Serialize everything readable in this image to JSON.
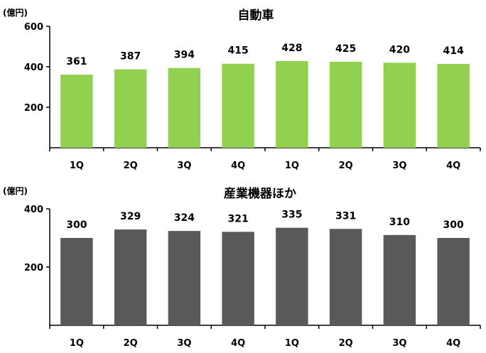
{
  "chart_data": [
    {
      "type": "bar",
      "title": "自動車",
      "unit_label": "(億円)",
      "categories": [
        "1Q",
        "2Q",
        "3Q",
        "4Q",
        "1Q",
        "2Q",
        "3Q",
        "4Q"
      ],
      "values": [
        361,
        387,
        394,
        415,
        428,
        425,
        420,
        414
      ],
      "value_labels": [
        "361",
        "387",
        "394",
        "415",
        "428",
        "425",
        "420",
        "414"
      ],
      "yticks": [
        "200",
        "400",
        "600"
      ],
      "ylim": [
        0,
        600
      ],
      "grid": false,
      "color": "#92d050"
    },
    {
      "type": "bar",
      "title": "産業機器ほか",
      "unit_label": "(億円)",
      "categories": [
        "1Q",
        "2Q",
        "3Q",
        "4Q",
        "1Q",
        "2Q",
        "3Q",
        "4Q"
      ],
      "values": [
        300,
        329,
        324,
        321,
        335,
        331,
        310,
        300
      ],
      "value_labels": [
        "300",
        "329",
        "324",
        "321",
        "335",
        "331",
        "310",
        "300"
      ],
      "yticks": [
        "200",
        "400"
      ],
      "ylim": [
        0,
        400
      ],
      "grid": false,
      "color": "#595959"
    }
  ]
}
